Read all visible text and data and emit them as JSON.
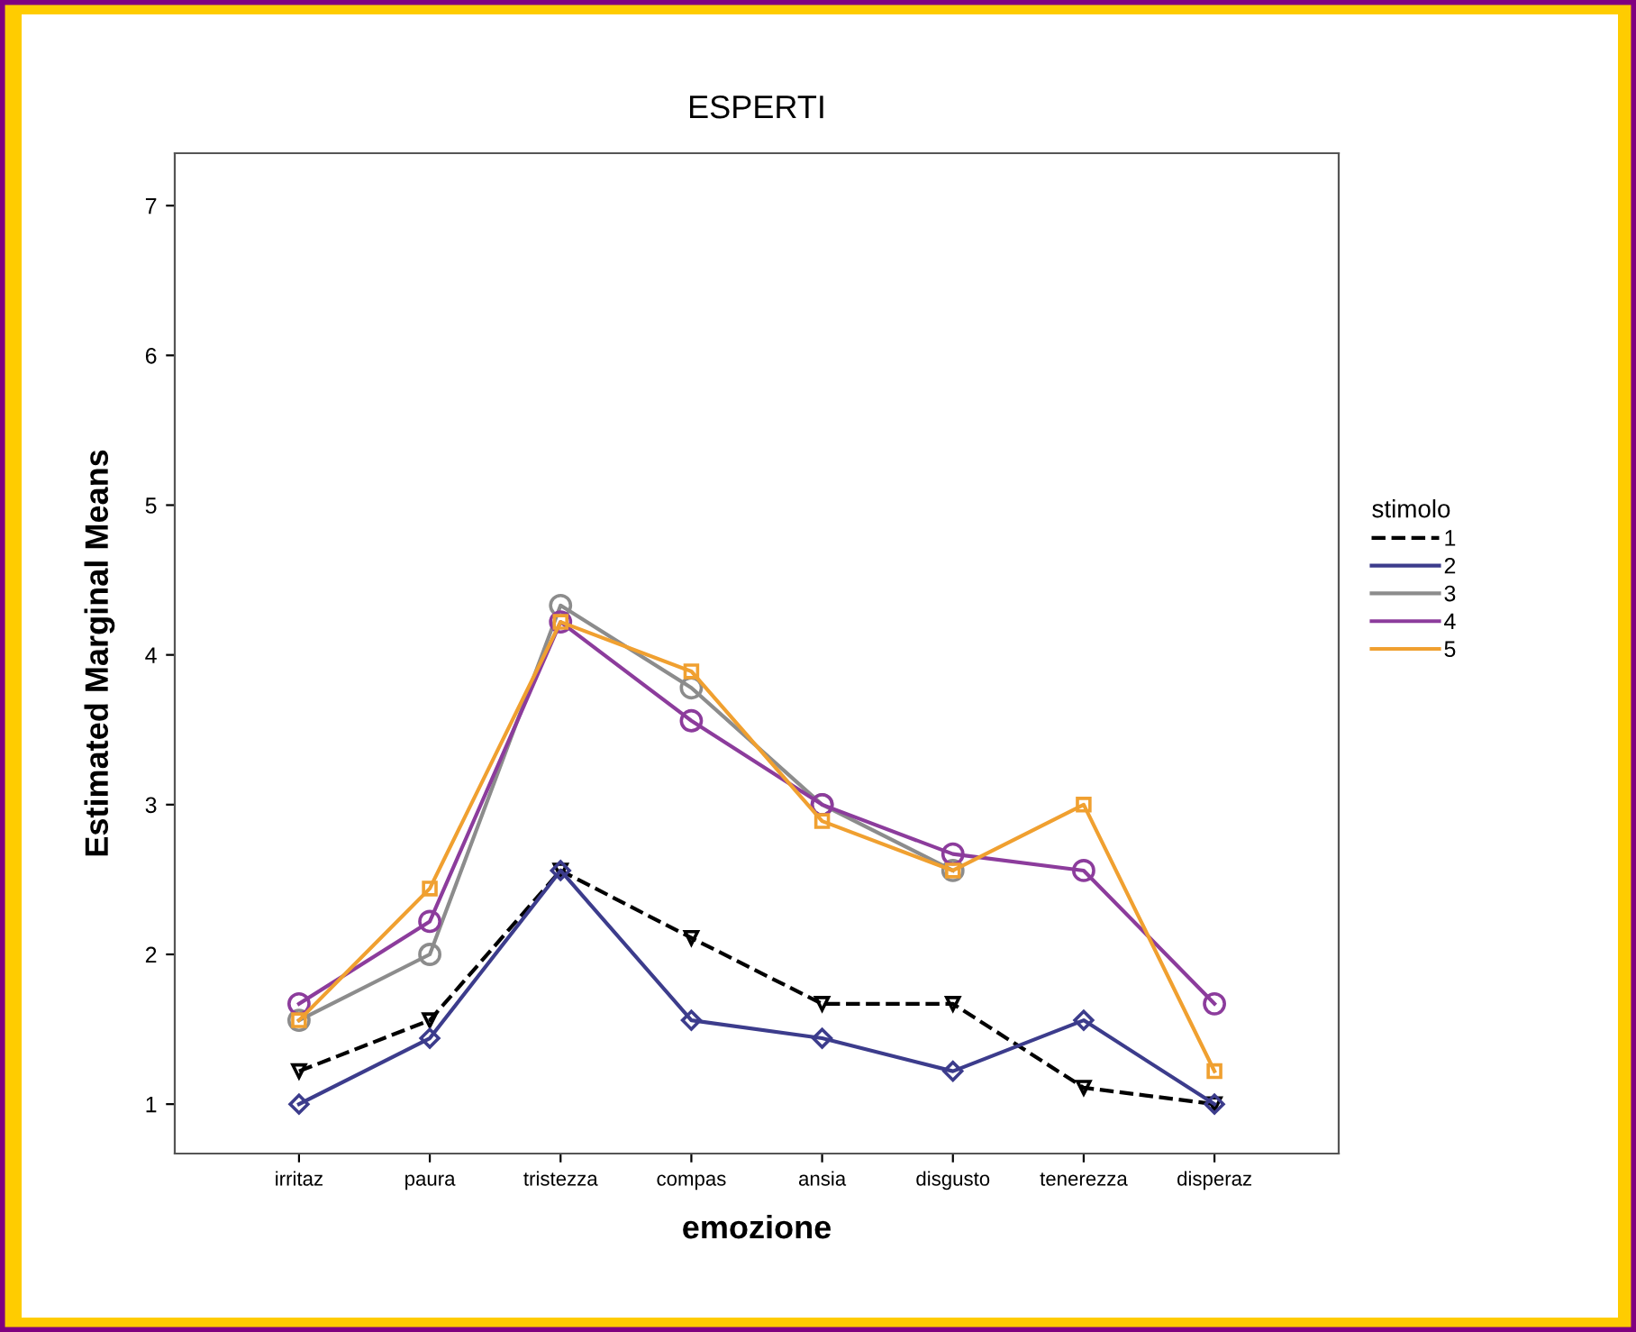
{
  "chart_data": {
    "type": "line",
    "title": "ESPERTI",
    "xlabel": "emozione",
    "ylabel": "Estimated Marginal Means",
    "legend_title": "stimolo",
    "legend": "right",
    "grid": false,
    "categories": [
      "irritaz",
      "paura",
      "tristezza",
      "compas",
      "ansia",
      "disgusto",
      "tenerezza",
      "disperaz"
    ],
    "ylim": [
      0.67,
      7.35
    ],
    "yticks": [
      1,
      2,
      3,
      4,
      5,
      6,
      7
    ],
    "series": [
      {
        "name": "1",
        "color": "#000000",
        "line_style": "dashed",
        "marker": "triangle",
        "values": [
          1.22,
          1.56,
          2.56,
          2.11,
          1.67,
          1.67,
          1.11,
          1.0
        ]
      },
      {
        "name": "2",
        "color": "#3c3c8c",
        "line_style": "solid",
        "marker": "diamond",
        "values": [
          1.0,
          1.44,
          2.56,
          1.56,
          1.44,
          1.22,
          1.56,
          1.0
        ]
      },
      {
        "name": "3",
        "color": "#8c8c8c",
        "line_style": "solid",
        "marker": "circle",
        "values": [
          1.56,
          2.0,
          4.33,
          3.78,
          3.0,
          2.56,
          null,
          null
        ]
      },
      {
        "name": "4",
        "color": "#8c3c9c",
        "line_style": "solid",
        "marker": "circle",
        "values": [
          1.67,
          2.22,
          4.22,
          3.56,
          3.0,
          2.67,
          2.56,
          1.67
        ]
      },
      {
        "name": "5",
        "color": "#f0a030",
        "line_style": "solid",
        "marker": "square",
        "values": [
          1.56,
          2.44,
          4.22,
          3.89,
          2.89,
          2.56,
          3.0,
          1.22
        ]
      }
    ]
  }
}
